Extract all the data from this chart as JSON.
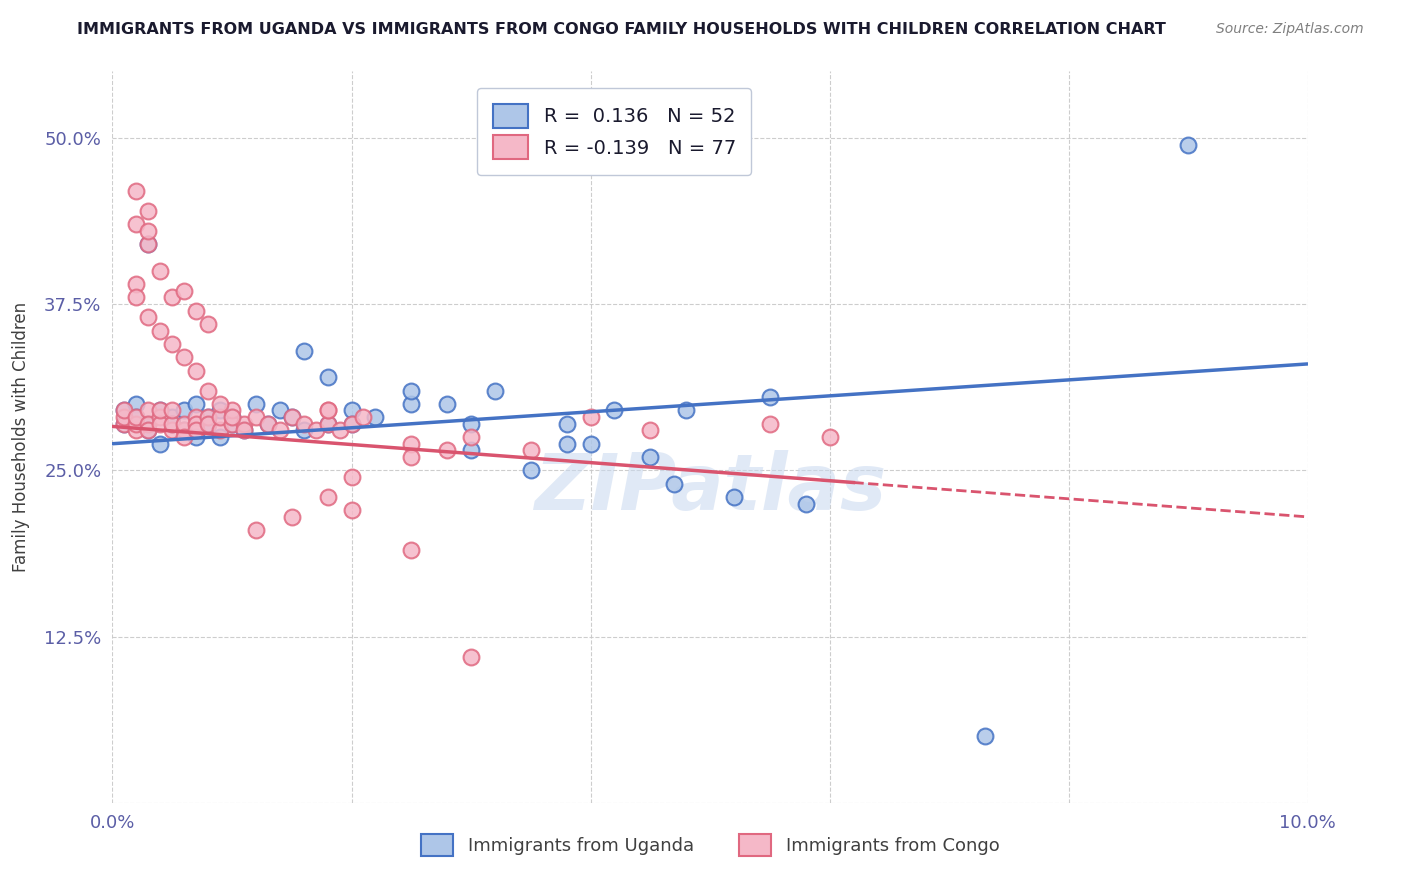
{
  "title": "IMMIGRANTS FROM UGANDA VS IMMIGRANTS FROM CONGO FAMILY HOUSEHOLDS WITH CHILDREN CORRELATION CHART",
  "source": "Source: ZipAtlas.com",
  "ylabel": "Family Households with Children",
  "xmin": 0.0,
  "xmax": 0.1,
  "ymin": 0.0,
  "ymax": 0.55,
  "xticks": [
    0.0,
    0.02,
    0.04,
    0.06,
    0.08,
    0.1
  ],
  "xticklabels": [
    "0.0%",
    "",
    "",
    "",
    "",
    "10.0%"
  ],
  "yticks": [
    0.0,
    0.125,
    0.25,
    0.375,
    0.5
  ],
  "yticklabels": [
    "",
    "12.5%",
    "25.0%",
    "37.5%",
    "50.0%"
  ],
  "r_uganda": 0.136,
  "n_uganda": 52,
  "r_congo": -0.139,
  "n_congo": 77,
  "uganda_face_color": "#aec6e8",
  "uganda_edge_color": "#4472c4",
  "congo_face_color": "#f5b8c8",
  "congo_edge_color": "#e06880",
  "uganda_line_color": "#4472c4",
  "congo_line_color": "#d9546e",
  "watermark": "ZIPatlas",
  "legend_box_color": "#f0f4ff",
  "axis_label_color": "#5b5ea6",
  "title_color": "#1a1a2e",
  "source_color": "#808080",
  "uganda_x": [
    0.001,
    0.001,
    0.002,
    0.002,
    0.003,
    0.003,
    0.004,
    0.004,
    0.005,
    0.005,
    0.006,
    0.006,
    0.007,
    0.007,
    0.008,
    0.008,
    0.009,
    0.009,
    0.01,
    0.01,
    0.011,
    0.012,
    0.013,
    0.014,
    0.015,
    0.016,
    0.018,
    0.02,
    0.022,
    0.025,
    0.003,
    0.016,
    0.018,
    0.02,
    0.025,
    0.028,
    0.03,
    0.032,
    0.038,
    0.042,
    0.048,
    0.055,
    0.035,
    0.04,
    0.047,
    0.052,
    0.058,
    0.03,
    0.038,
    0.045,
    0.073,
    0.09
  ],
  "uganda_y": [
    0.285,
    0.295,
    0.3,
    0.29,
    0.285,
    0.28,
    0.295,
    0.27,
    0.29,
    0.285,
    0.28,
    0.295,
    0.275,
    0.3,
    0.29,
    0.285,
    0.295,
    0.275,
    0.29,
    0.285,
    0.28,
    0.3,
    0.285,
    0.295,
    0.29,
    0.28,
    0.285,
    0.295,
    0.29,
    0.3,
    0.42,
    0.34,
    0.32,
    0.285,
    0.31,
    0.3,
    0.285,
    0.31,
    0.285,
    0.295,
    0.295,
    0.305,
    0.25,
    0.27,
    0.24,
    0.23,
    0.225,
    0.265,
    0.27,
    0.26,
    0.05,
    0.495
  ],
  "congo_x": [
    0.001,
    0.001,
    0.001,
    0.002,
    0.002,
    0.002,
    0.003,
    0.003,
    0.003,
    0.004,
    0.004,
    0.004,
    0.005,
    0.005,
    0.005,
    0.006,
    0.006,
    0.006,
    0.007,
    0.007,
    0.007,
    0.008,
    0.008,
    0.009,
    0.009,
    0.01,
    0.01,
    0.011,
    0.011,
    0.012,
    0.013,
    0.014,
    0.015,
    0.016,
    0.017,
    0.018,
    0.018,
    0.019,
    0.02,
    0.021,
    0.002,
    0.003,
    0.004,
    0.005,
    0.006,
    0.007,
    0.008,
    0.002,
    0.003,
    0.003,
    0.002,
    0.002,
    0.003,
    0.004,
    0.005,
    0.006,
    0.007,
    0.008,
    0.009,
    0.01,
    0.025,
    0.028,
    0.035,
    0.04,
    0.045,
    0.055,
    0.06,
    0.02,
    0.025,
    0.03,
    0.012,
    0.015,
    0.018,
    0.02,
    0.025,
    0.03,
    0.018
  ],
  "congo_y": [
    0.285,
    0.29,
    0.295,
    0.28,
    0.285,
    0.29,
    0.295,
    0.285,
    0.28,
    0.29,
    0.285,
    0.295,
    0.28,
    0.285,
    0.295,
    0.28,
    0.285,
    0.275,
    0.29,
    0.285,
    0.28,
    0.29,
    0.285,
    0.28,
    0.29,
    0.285,
    0.295,
    0.285,
    0.28,
    0.29,
    0.285,
    0.28,
    0.29,
    0.285,
    0.28,
    0.285,
    0.295,
    0.28,
    0.285,
    0.29,
    0.435,
    0.42,
    0.4,
    0.38,
    0.385,
    0.37,
    0.36,
    0.46,
    0.445,
    0.43,
    0.39,
    0.38,
    0.365,
    0.355,
    0.345,
    0.335,
    0.325,
    0.31,
    0.3,
    0.29,
    0.27,
    0.265,
    0.265,
    0.29,
    0.28,
    0.285,
    0.275,
    0.245,
    0.26,
    0.275,
    0.205,
    0.215,
    0.23,
    0.22,
    0.19,
    0.11,
    0.295
  ],
  "ug_line_x0": 0.0,
  "ug_line_x1": 0.1,
  "ug_line_y0": 0.27,
  "ug_line_y1": 0.33,
  "cg_line_x0": 0.0,
  "cg_line_x1": 0.1,
  "cg_line_y0": 0.283,
  "cg_line_y1": 0.215
}
